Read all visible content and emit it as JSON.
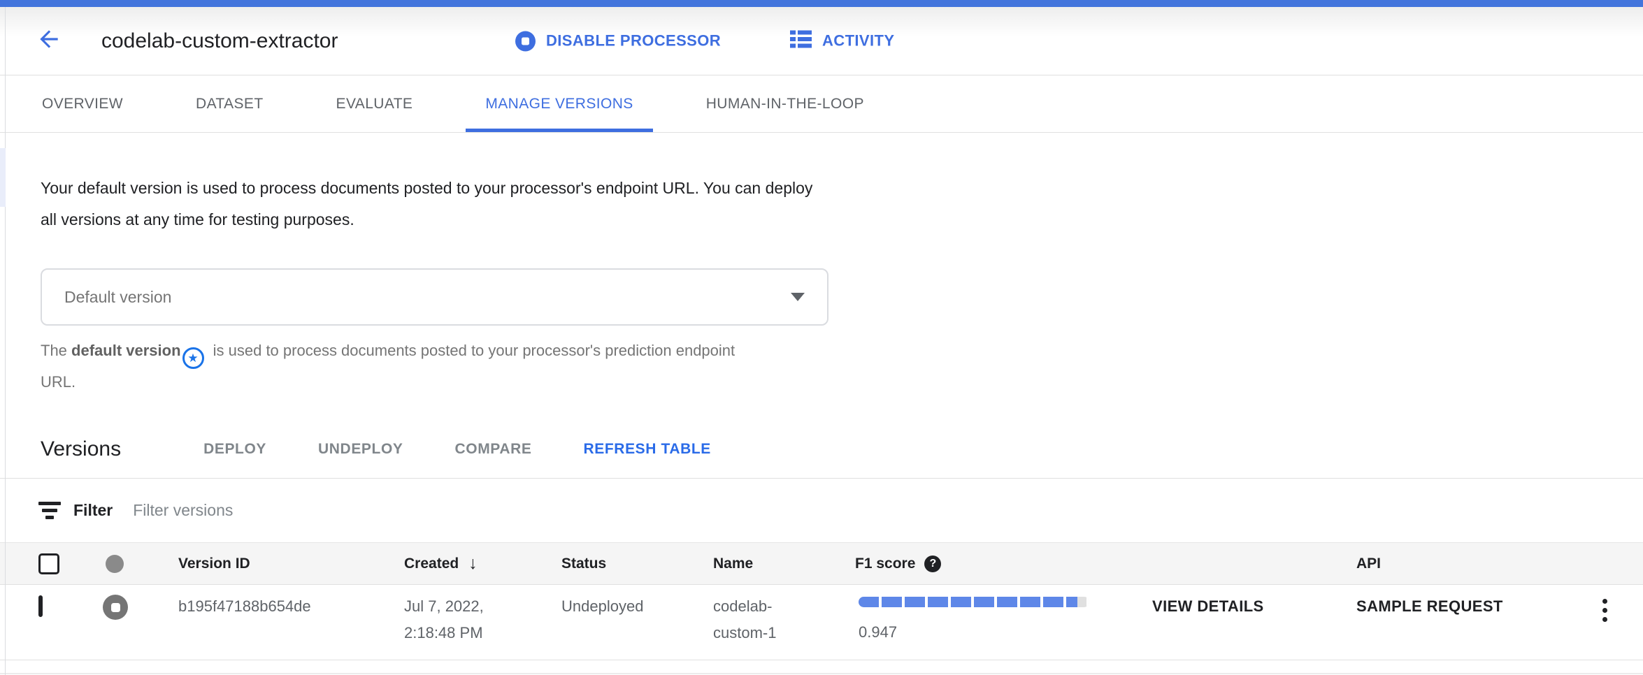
{
  "colors": {
    "topbar_blue": "#4274dc",
    "accent_blue": "#3e6ee0",
    "link_blue": "#2a6be8",
    "f1_bar_fill": "#5e87e8",
    "f1_bar_track": "#e0e0e0",
    "star_badge_blue": "#1a73e8",
    "status_gray": "#757575"
  },
  "header": {
    "title": "codelab-custom-extractor",
    "back_icon": "arrow-left-icon",
    "actions": [
      {
        "label": "DISABLE PROCESSOR",
        "icon": "stop-circle-icon"
      },
      {
        "label": "ACTIVITY",
        "icon": "activity-list-icon"
      }
    ]
  },
  "tabs": [
    {
      "label": "OVERVIEW",
      "active": false
    },
    {
      "label": "DATASET",
      "active": false
    },
    {
      "label": "EVALUATE",
      "active": false
    },
    {
      "label": "MANAGE VERSIONS",
      "active": true
    },
    {
      "label": "HUMAN-IN-THE-LOOP",
      "active": false
    }
  ],
  "main": {
    "description": "Your default version is used to process documents posted to your processor's endpoint URL. You can deploy all versions at any time for testing purposes.",
    "default_version_field": {
      "value": "Default version",
      "icon": "chevron-down-icon"
    },
    "helper": {
      "prefix": "The ",
      "bold": "default version",
      "icon": "star-in-circle-icon",
      "suffix": " is used to process documents posted to your processor's prediction endpoint URL."
    }
  },
  "versions": {
    "heading": "Versions",
    "toolbar": [
      {
        "label": "DEPLOY",
        "enabled": false
      },
      {
        "label": "UNDEPLOY",
        "enabled": false
      },
      {
        "label": "COMPARE",
        "enabled": false
      },
      {
        "label": "REFRESH TABLE",
        "enabled": true
      }
    ],
    "filter": {
      "label": "Filter",
      "placeholder": "Filter versions",
      "icon": "filter-icon"
    },
    "table": {
      "headers": {
        "version_id": "Version ID",
        "created": "Created",
        "status": "Status",
        "name": "Name",
        "f1": "F1 score",
        "api": "API"
      },
      "sort": {
        "column": "Created",
        "direction": "desc",
        "icon": "arrow-down-icon"
      },
      "rows": [
        {
          "version_id": "b195f47188b654de",
          "created": "Jul 7, 2022, 2:18:48 PM",
          "status": "Undeployed",
          "status_icon": "stop-circle-gray-icon",
          "name": "codelab-custom-1",
          "f1_score": "0.947",
          "f1_percent": 94.7,
          "view_details": "VIEW DETAILS",
          "sample_request": "SAMPLE REQUEST"
        }
      ]
    }
  }
}
